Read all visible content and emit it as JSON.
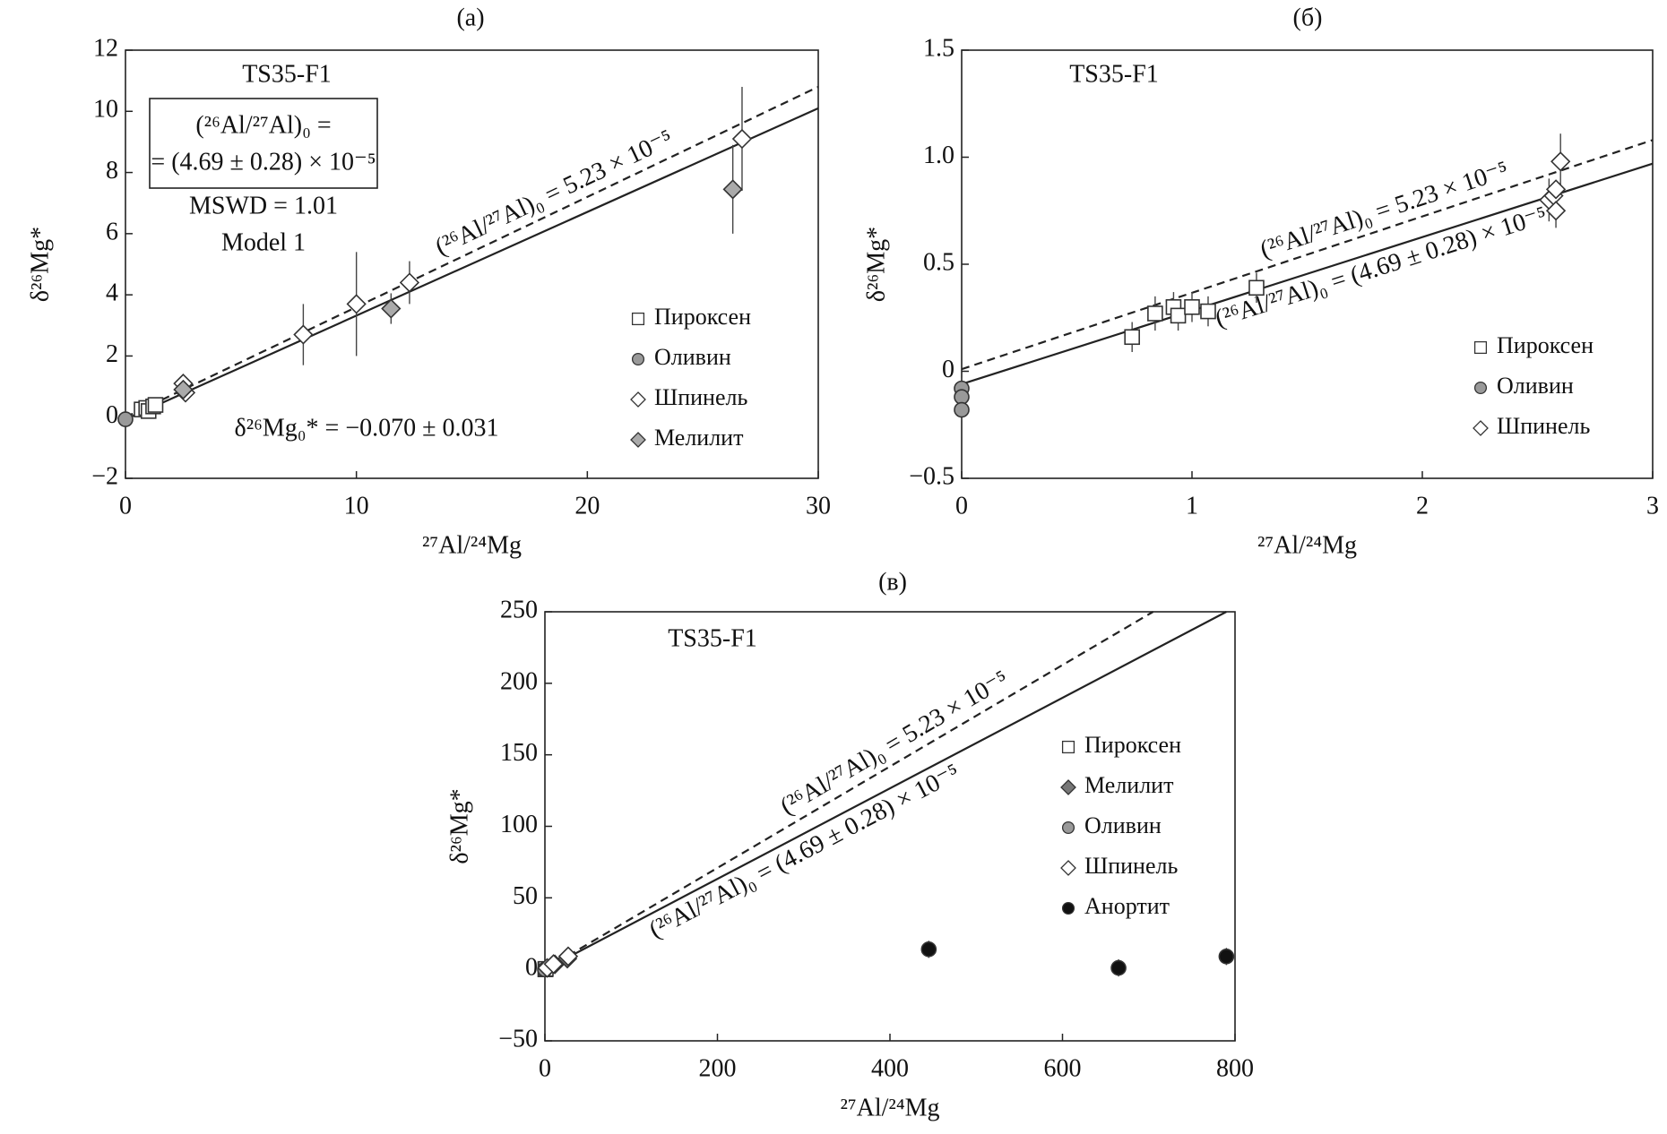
{
  "chart_data": [
    {
      "type": "scatter",
      "panel": "(а)",
      "title": "TS35-F1",
      "xlabel": "²⁷Al/²⁴Mg",
      "ylabel": "δ²⁶Mg*",
      "xlim": [
        0,
        30
      ],
      "ylim": [
        -2,
        12
      ],
      "xticks": [
        0,
        10,
        20,
        30
      ],
      "yticks": [
        {
          "value": -2,
          "label": "−2"
        },
        0,
        2,
        4,
        6,
        8,
        10,
        12
      ],
      "legend": "center right",
      "annotations": [
        "(²⁶Al/²⁷Al)₀ =",
        "= (4.69 ± 0.28) × 10⁻⁵",
        "MSWD = 1.01",
        "Model 1",
        "δ²⁶Mg₀* = −0.070 ± 0.031"
      ],
      "lines": [
        {
          "style": "dashed",
          "label": "(²⁶Al/²⁷Al)₀ = 5.23 × 10⁻⁵",
          "x": [
            0,
            30
          ],
          "values": [
            0,
            10.8
          ]
        },
        {
          "style": "solid",
          "x": [
            0,
            30
          ],
          "values": [
            -0.07,
            10.1
          ]
        }
      ],
      "series": [
        {
          "name": "Пироксен",
          "marker": "square",
          "color": "#ffffff",
          "x": [
            0.7,
            0.9,
            1.0,
            1.2,
            1.3
          ],
          "values": [
            0.25,
            0.3,
            0.2,
            0.35,
            0.4
          ],
          "errors": [
            null,
            null,
            null,
            null,
            null
          ]
        },
        {
          "name": "Оливин",
          "marker": "circle",
          "color": "#999999",
          "x": [
            0
          ],
          "values": [
            -0.07
          ],
          "errors": [
            null
          ]
        },
        {
          "name": "Шпинель",
          "marker": "diamond",
          "color": "#ffffff",
          "x": [
            2.5,
            2.6,
            7.7,
            10,
            12.3,
            26.7
          ],
          "values": [
            1.1,
            0.8,
            2.7,
            3.7,
            4.4,
            9.1
          ],
          "errors": [
            null,
            null,
            1.0,
            1.7,
            0.7,
            1.7
          ]
        },
        {
          "name": "Мелилит",
          "marker": "diamond",
          "color": "#aaaaaa",
          "x": [
            2.5,
            11.5,
            26.3
          ],
          "values": [
            0.9,
            3.55,
            7.45
          ],
          "errors": [
            null,
            0.5,
            1.45
          ]
        }
      ]
    },
    {
      "type": "scatter",
      "panel": "(б)",
      "title": "TS35-F1",
      "xlabel": "²⁷Al/²⁴Mg",
      "ylabel": "δ²⁶Mg*",
      "xlim": [
        0,
        3
      ],
      "ylim": [
        -0.5,
        1.5
      ],
      "xticks": [
        0,
        1,
        2,
        3
      ],
      "yticks": [
        {
          "value": -0.5,
          "label": "−0.5"
        },
        0,
        0.5,
        {
          "value": 1.0,
          "label": "1.0"
        },
        1.5
      ],
      "legend": "lower right",
      "lines": [
        {
          "style": "dashed",
          "label": "(²⁶Al/²⁷Al)₀ = 5.23 × 10⁻⁵",
          "x": [
            0,
            3
          ],
          "values": [
            0.01,
            1.08
          ]
        },
        {
          "style": "solid",
          "label": "(²⁶Al/²⁷Al)₀ = (4.69 ± 0.28) × 10⁻⁵",
          "x": [
            0,
            3
          ],
          "values": [
            -0.06,
            0.97
          ]
        }
      ],
      "series": [
        {
          "name": "Пироксен",
          "marker": "square",
          "color": "#ffffff",
          "x": [
            0.74,
            0.84,
            0.92,
            0.94,
            1.0,
            1.07,
            1.28
          ],
          "values": [
            0.16,
            0.27,
            0.3,
            0.26,
            0.3,
            0.28,
            0.39
          ],
          "errors": [
            0.07,
            0.08,
            0.07,
            0.07,
            0.07,
            0.07,
            0.07
          ]
        },
        {
          "name": "Оливин",
          "marker": "circle",
          "color": "#999999",
          "x": [
            0,
            0,
            0
          ],
          "values": [
            -0.08,
            -0.12,
            -0.18
          ],
          "errors": [
            0.05,
            0.05,
            0.05
          ]
        },
        {
          "name": "Шпинель",
          "marker": "diamond",
          "color": "#ffffff",
          "x": [
            2.55,
            2.57,
            2.58,
            2.58,
            2.6
          ],
          "values": [
            0.8,
            0.82,
            0.75,
            0.85,
            0.98
          ],
          "errors": [
            0.1,
            null,
            0.08,
            null,
            0.13
          ]
        }
      ]
    },
    {
      "type": "scatter",
      "panel": "(в)",
      "title": "TS35-F1",
      "xlabel": "²⁷Al/²⁴Mg",
      "ylabel": "δ²⁶Mg*",
      "xlim": [
        0,
        800
      ],
      "ylim": [
        -50,
        250
      ],
      "xticks": [
        0,
        200,
        400,
        600,
        800
      ],
      "yticks": [
        {
          "value": -50,
          "label": "−50"
        },
        0,
        50,
        100,
        150,
        200,
        250
      ],
      "legend": "upper right",
      "lines": [
        {
          "style": "dashed",
          "label": "(²⁶Al/²⁷Al)₀ = 5.23 × 10⁻⁵",
          "x": [
            0,
            705
          ],
          "values": [
            0,
            250
          ]
        },
        {
          "style": "solid",
          "label": "(²⁶Al/²⁷Al)₀ = (4.69 ± 0.28) × 10⁻⁵",
          "x": [
            0,
            790
          ],
          "values": [
            -0.07,
            250
          ]
        }
      ],
      "series": [
        {
          "name": "Пироксен",
          "marker": "square",
          "color": "#ffffff",
          "x": [
            0.5,
            1
          ],
          "values": [
            0,
            0.3
          ],
          "errors": [
            null,
            null
          ]
        },
        {
          "name": "Мелилит",
          "marker": "diamond",
          "color": "#777777",
          "x": [
            11.5,
            26
          ],
          "values": [
            3.5,
            7.5
          ],
          "errors": [
            null,
            null
          ]
        },
        {
          "name": "Оливин",
          "marker": "circle",
          "color": "#999999",
          "x": [
            0
          ],
          "values": [
            -0.07
          ],
          "errors": [
            null
          ]
        },
        {
          "name": "Шпинель",
          "marker": "diamond",
          "color": "#ffffff",
          "x": [
            2.6,
            10,
            27
          ],
          "values": [
            1,
            3.7,
            9.1
          ],
          "errors": [
            null,
            null,
            null
          ]
        },
        {
          "name": "Анортит",
          "marker": "circle",
          "color": "#111111",
          "x": [
            445,
            665,
            790
          ],
          "values": [
            14,
            1,
            9
          ],
          "errors": [
            6,
            6,
            6
          ]
        }
      ]
    }
  ]
}
